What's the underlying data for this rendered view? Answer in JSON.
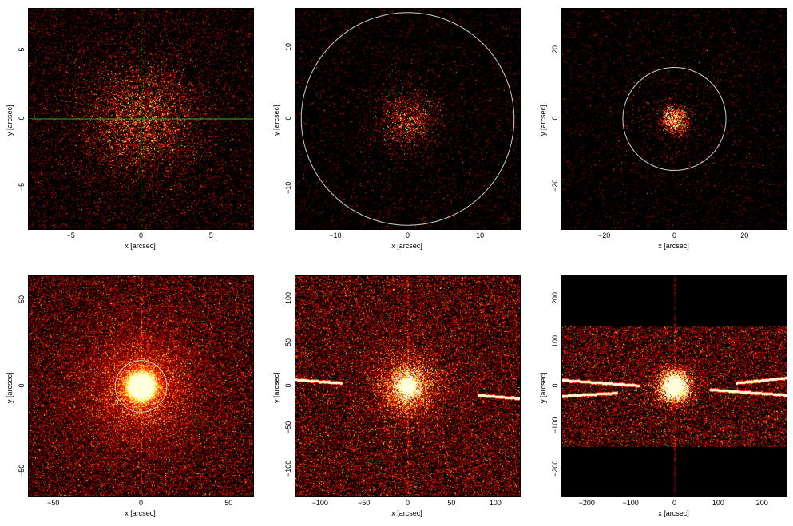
{
  "figure": {
    "panels": [
      {
        "xlim": [
          -8,
          8
        ],
        "ylim": [
          -8,
          8
        ],
        "xticks": [
          -5,
          0,
          5
        ],
        "yticks": [
          -5,
          0,
          5
        ],
        "xlabel": "x [arcsec]",
        "ylabel": "y [arcsec]",
        "overlay": "crosshair",
        "circle_radius": null,
        "spikes": false,
        "streaks": [],
        "band": null
      },
      {
        "xlim": [
          -15.5,
          15.5
        ],
        "ylim": [
          -15.5,
          15.5
        ],
        "xticks": [
          -10,
          0,
          10
        ],
        "yticks": [
          -10,
          0,
          10
        ],
        "xlabel": "x [arcsec]",
        "ylabel": "y [arcsec]",
        "overlay": "circle",
        "circle_radius": 14.7,
        "spikes": false,
        "streaks": [],
        "band": null
      },
      {
        "xlim": [
          -32,
          32
        ],
        "ylim": [
          -32,
          32
        ],
        "xticks": [
          -20,
          0,
          20
        ],
        "yticks": [
          -20,
          0,
          20
        ],
        "xlabel": "x [arcsec]",
        "ylabel": "y [arcsec]",
        "overlay": "circle",
        "circle_radius": 14.7,
        "spikes": false,
        "streaks": [],
        "band": null
      },
      {
        "xlim": [
          -64,
          64
        ],
        "ylim": [
          -64,
          64
        ],
        "xticks": [
          -50,
          0,
          50
        ],
        "yticks": [
          -50,
          0,
          50
        ],
        "xlabel": "x [arcsec]",
        "ylabel": "y [arcsec]",
        "overlay": "circle",
        "circle_radius": 14.7,
        "spikes": true,
        "streaks": [],
        "band": null
      },
      {
        "xlim": [
          -128,
          128
        ],
        "ylim": [
          -128,
          128
        ],
        "xticks": [
          -100,
          -50,
          0,
          50,
          100
        ],
        "yticks": [
          -100,
          -50,
          0,
          50,
          100
        ],
        "xlabel": "x [arcsec]",
        "ylabel": "y [arcsec]",
        "overlay": "circle",
        "circle_radius": 14.7,
        "spikes": true,
        "streaks": [
          [
            -128,
            8,
            -75,
            4
          ],
          [
            80,
            -10,
            128,
            -14
          ]
        ],
        "band": null
      },
      {
        "xlim": [
          -256,
          256
        ],
        "ylim": [
          -256,
          256
        ],
        "xticks": [
          -200,
          -100,
          0,
          100,
          200
        ],
        "yticks": [
          -200,
          -100,
          0,
          100,
          200
        ],
        "xlabel": "x [arcsec]",
        "ylabel": "y [arcsec]",
        "overlay": "none",
        "circle_radius": null,
        "spikes": true,
        "streaks": [
          [
            -256,
            15,
            -80,
            2
          ],
          [
            -256,
            -22,
            -130,
            -15
          ],
          [
            80,
            -7,
            256,
            -20
          ],
          [
            140,
            8,
            256,
            20
          ]
        ],
        "band": [
          -140,
          140
        ]
      }
    ],
    "colors": {
      "background": "#000000",
      "crosshair": "#27b327",
      "circle": "#cccccc"
    }
  }
}
